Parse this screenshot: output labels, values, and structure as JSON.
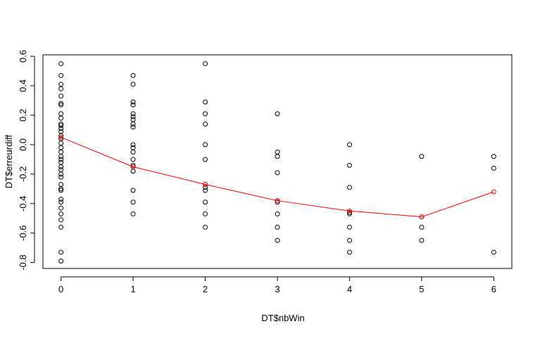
{
  "chart_data": {
    "type": "scatter",
    "title": "",
    "xlabel": "DT$nbWin",
    "ylabel": "DT$erreurdiff",
    "xlim": [
      -0.25,
      6.25
    ],
    "ylim": [
      -0.84,
      0.61
    ],
    "x_ticks": [
      0,
      1,
      2,
      3,
      4,
      5,
      6
    ],
    "y_ticks": [
      -0.8,
      -0.6,
      -0.4,
      -0.2,
      0.0,
      0.2,
      0.4,
      0.6
    ],
    "x_tick_labels": [
      "0",
      "1",
      "2",
      "3",
      "4",
      "5",
      "6"
    ],
    "y_tick_labels": [
      "-0.8",
      "-0.6",
      "-0.4",
      "-0.2",
      "0.0",
      "0.2",
      "0.4",
      "0.6"
    ],
    "grid": false,
    "point_color": "#000000",
    "line_color": "#ff0000",
    "points": {
      "0": [
        0.55,
        0.47,
        0.41,
        0.38,
        0.33,
        0.28,
        0.27,
        0.21,
        0.18,
        0.14,
        0.13,
        0.11,
        0.09,
        0.06,
        0.04,
        0.01,
        -0.02,
        -0.05,
        -0.08,
        -0.1,
        -0.12,
        -0.15,
        -0.17,
        -0.2,
        -0.22,
        -0.27,
        -0.3,
        -0.31,
        -0.37,
        -0.39,
        -0.43,
        -0.47,
        -0.51,
        -0.56,
        -0.73,
        -0.79
      ],
      "1": [
        0.47,
        0.41,
        0.29,
        0.27,
        0.21,
        0.19,
        0.17,
        0.14,
        0.12,
        0.0,
        -0.02,
        -0.05,
        -0.1,
        -0.14,
        -0.15,
        -0.18,
        -0.31,
        -0.39,
        -0.47
      ],
      "2": [
        0.55,
        0.29,
        0.21,
        0.14,
        0.0,
        -0.1,
        -0.27,
        -0.29,
        -0.31,
        -0.39,
        -0.47,
        -0.56
      ],
      "3": [
        0.21,
        -0.05,
        -0.08,
        -0.19,
        -0.38,
        -0.39,
        -0.47,
        -0.56,
        -0.65
      ],
      "4": [
        0.0,
        -0.14,
        -0.29,
        -0.46,
        -0.47,
        -0.56,
        -0.65,
        -0.73
      ],
      "5": [
        -0.08,
        -0.49,
        -0.56,
        -0.65
      ],
      "6": [
        -0.08,
        -0.16,
        -0.73
      ]
    },
    "series": [
      {
        "type": "line",
        "x": [
          0,
          1,
          2,
          3,
          4,
          5,
          6
        ],
        "values": [
          0.05,
          -0.15,
          -0.27,
          -0.38,
          -0.45,
          -0.49,
          -0.32
        ]
      }
    ]
  }
}
